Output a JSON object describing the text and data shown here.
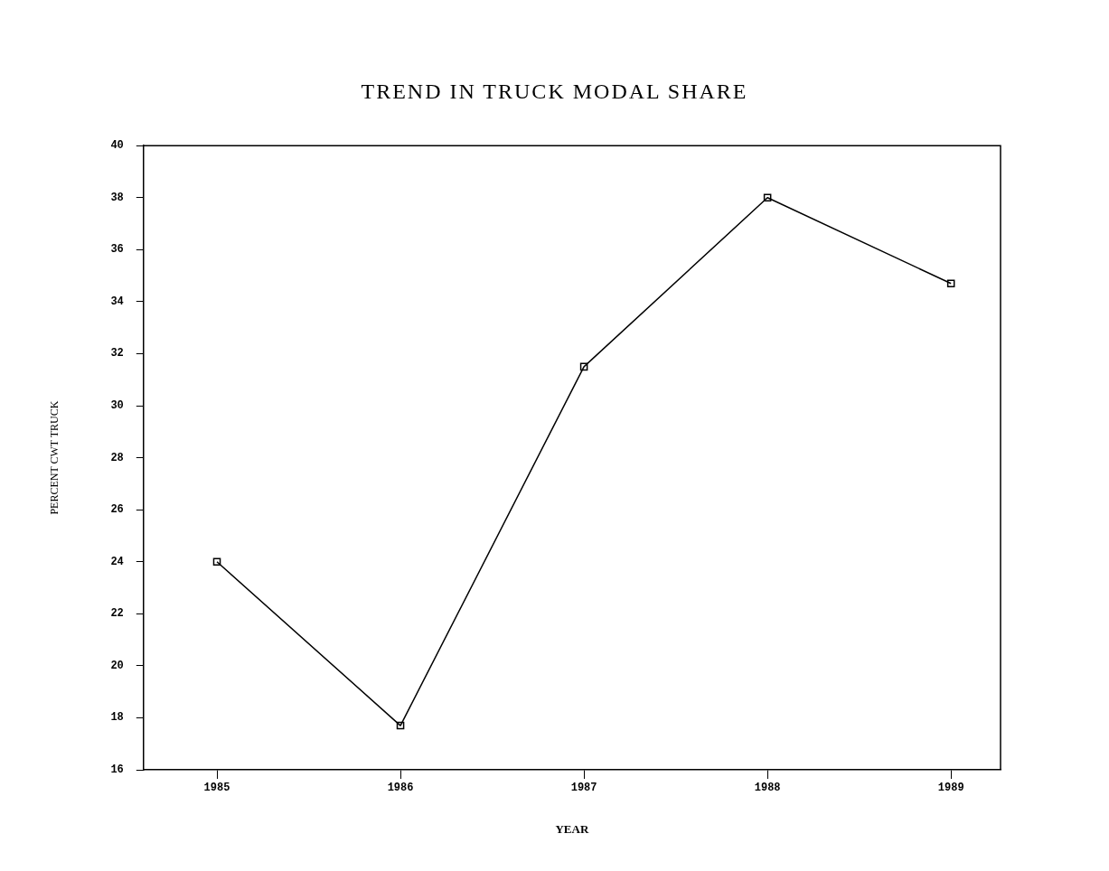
{
  "chart_data": {
    "type": "line",
    "title": "TREND IN TRUCK MODAL SHARE",
    "xlabel": "YEAR",
    "ylabel": "PERCENT CWT TRUCK",
    "x": [
      1985,
      1986,
      1987,
      1988,
      1989
    ],
    "series": [
      {
        "color": "#000000",
        "values": [
          24,
          17.7,
          31.5,
          38,
          34.7
        ]
      }
    ],
    "xlim": [
      1984.6,
      1989.27
    ],
    "xticks": [
      1985,
      1986,
      1987,
      1988,
      1989
    ],
    "ylim": [
      16,
      40
    ],
    "yticks": [
      16,
      18,
      20,
      22,
      24,
      26,
      28,
      30,
      32,
      34,
      36,
      38,
      40
    ],
    "grid": false,
    "legend": false,
    "marker": "square",
    "line_style": "solid"
  }
}
